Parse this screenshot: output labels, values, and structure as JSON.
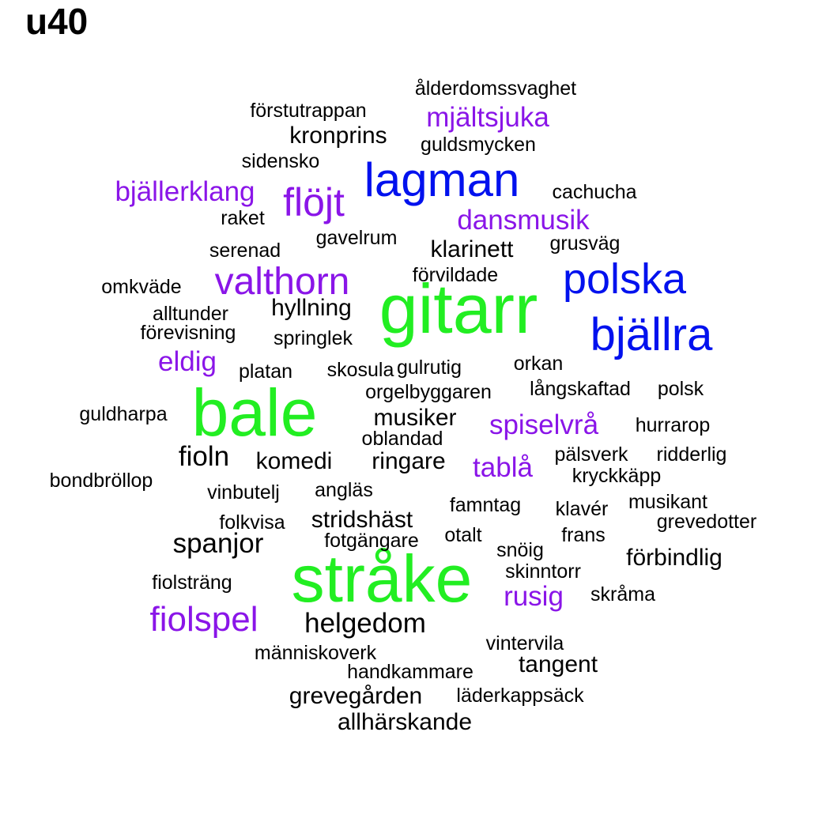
{
  "chart_data": {
    "type": "wordcloud",
    "title": "u40",
    "colors": {
      "tier1": "#22ee22",
      "tier2": "#0011ee",
      "tier3": "#8a15e8",
      "tier4": "#000000"
    },
    "words": [
      {
        "text": "gitarr",
        "tier": 1
      },
      {
        "text": "bale",
        "tier": 1
      },
      {
        "text": "stråke",
        "tier": 1
      },
      {
        "text": "lagman",
        "tier": 2
      },
      {
        "text": "polska",
        "tier": 2
      },
      {
        "text": "bjällra",
        "tier": 2
      },
      {
        "text": "flöjt",
        "tier": 3
      },
      {
        "text": "valthorn",
        "tier": 3
      },
      {
        "text": "fiolspel",
        "tier": 3
      },
      {
        "text": "bjällerklang",
        "tier": 3
      },
      {
        "text": "mjältsjuka",
        "tier": 3
      },
      {
        "text": "dansmusik",
        "tier": 3
      },
      {
        "text": "spiselvrå",
        "tier": 3
      },
      {
        "text": "eldig",
        "tier": 3
      },
      {
        "text": "tablå",
        "tier": 3
      },
      {
        "text": "rusig",
        "tier": 3
      },
      {
        "text": "ålderdomssvaghet",
        "tier": 4
      },
      {
        "text": "förstutrappan",
        "tier": 4
      },
      {
        "text": "kronprins",
        "tier": 4
      },
      {
        "text": "guldsmycken",
        "tier": 4
      },
      {
        "text": "sidensko",
        "tier": 4
      },
      {
        "text": "cachucha",
        "tier": 4
      },
      {
        "text": "raket",
        "tier": 4
      },
      {
        "text": "gavelrum",
        "tier": 4
      },
      {
        "text": "grusväg",
        "tier": 4
      },
      {
        "text": "serenad",
        "tier": 4
      },
      {
        "text": "klarinett",
        "tier": 4
      },
      {
        "text": "förvildade",
        "tier": 4
      },
      {
        "text": "omkväde",
        "tier": 4
      },
      {
        "text": "hyllning",
        "tier": 4
      },
      {
        "text": "alltunder",
        "tier": 4
      },
      {
        "text": "förevisning",
        "tier": 4
      },
      {
        "text": "springlek",
        "tier": 4
      },
      {
        "text": "platan",
        "tier": 4
      },
      {
        "text": "skosula",
        "tier": 4
      },
      {
        "text": "gulrutig",
        "tier": 4
      },
      {
        "text": "orkan",
        "tier": 4
      },
      {
        "text": "orgelbyggaren",
        "tier": 4
      },
      {
        "text": "långskaftad",
        "tier": 4
      },
      {
        "text": "polsk",
        "tier": 4
      },
      {
        "text": "guldharpa",
        "tier": 4
      },
      {
        "text": "musiker",
        "tier": 4
      },
      {
        "text": "hurrarop",
        "tier": 4
      },
      {
        "text": "oblandad",
        "tier": 4
      },
      {
        "text": "fioln",
        "tier": 4
      },
      {
        "text": "komedi",
        "tier": 4
      },
      {
        "text": "ringare",
        "tier": 4
      },
      {
        "text": "pälsverk",
        "tier": 4
      },
      {
        "text": "ridderlig",
        "tier": 4
      },
      {
        "text": "bondbröllop",
        "tier": 4
      },
      {
        "text": "kryckkäpp",
        "tier": 4
      },
      {
        "text": "vinbutelj",
        "tier": 4
      },
      {
        "text": "angläs",
        "tier": 4
      },
      {
        "text": "famntag",
        "tier": 4
      },
      {
        "text": "klavér",
        "tier": 4
      },
      {
        "text": "musikant",
        "tier": 4
      },
      {
        "text": "folkvisa",
        "tier": 4
      },
      {
        "text": "stridshäst",
        "tier": 4
      },
      {
        "text": "grevedotter",
        "tier": 4
      },
      {
        "text": "otalt",
        "tier": 4
      },
      {
        "text": "frans",
        "tier": 4
      },
      {
        "text": "spanjor",
        "tier": 4
      },
      {
        "text": "fotgängare",
        "tier": 4
      },
      {
        "text": "snöig",
        "tier": 4
      },
      {
        "text": "förbindlig",
        "tier": 4
      },
      {
        "text": "skinntorr",
        "tier": 4
      },
      {
        "text": "fiolsträng",
        "tier": 4
      },
      {
        "text": "skråma",
        "tier": 4
      },
      {
        "text": "helgedom",
        "tier": 4
      },
      {
        "text": "vintervila",
        "tier": 4
      },
      {
        "text": "människoverk",
        "tier": 4
      },
      {
        "text": "tangent",
        "tier": 4
      },
      {
        "text": "handkammare",
        "tier": 4
      },
      {
        "text": "grevegården",
        "tier": 4
      },
      {
        "text": "läderkappsäck",
        "tier": 4
      },
      {
        "text": "allhärskande",
        "tier": 4
      }
    ]
  }
}
